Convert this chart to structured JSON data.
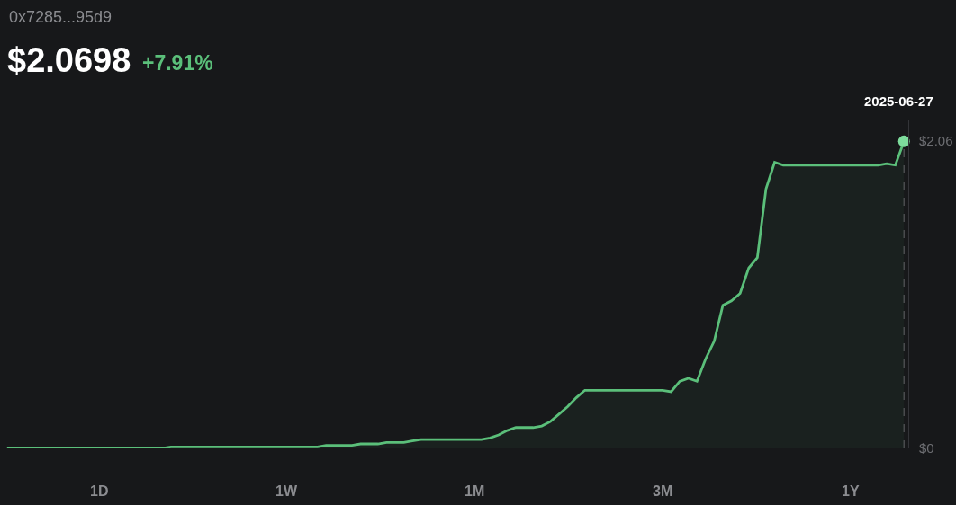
{
  "chart_data": {
    "type": "area",
    "title": "$2.0698",
    "subtitle": "+7.91%",
    "annotations": [
      "0x7285...95d9",
      "2025-06-27",
      "1D",
      "1W",
      "1M",
      "3M",
      "1Y"
    ],
    "categories": [
      null,
      null,
      null,
      null,
      null,
      null,
      null,
      null,
      null,
      null,
      null,
      null,
      null,
      null,
      null,
      null,
      null,
      null,
      null,
      null,
      null,
      null,
      null,
      null,
      null,
      null,
      null,
      null,
      null,
      null,
      null,
      null,
      null,
      null,
      null,
      null,
      null,
      null,
      null,
      null,
      null,
      null,
      null,
      null,
      null,
      null,
      null,
      null,
      null,
      null,
      null,
      null,
      null,
      null,
      null,
      null,
      null,
      null,
      null,
      null,
      null,
      null,
      null,
      null,
      null,
      null,
      null,
      null,
      null,
      null,
      null,
      null,
      null,
      null,
      null,
      null,
      null,
      null,
      null,
      null,
      null,
      null,
      null,
      null,
      null,
      null,
      null,
      null,
      null,
      null,
      null,
      null,
      null,
      null,
      null,
      null,
      null,
      null,
      null,
      null,
      null,
      null,
      null,
      null,
      null
    ],
    "series": [
      {
        "color": "#5bbf7a",
        "values": [
          0,
          0,
          0,
          0,
          0,
          0,
          0,
          0,
          0,
          0,
          0,
          0,
          0,
          0,
          0,
          0,
          0,
          0,
          0,
          0.01,
          0.01,
          0.01,
          0.01,
          0.01,
          0.01,
          0.01,
          0.01,
          0.01,
          0.01,
          0.01,
          0.01,
          0.01,
          0.01,
          0.01,
          0.01,
          0.01,
          0.01,
          0.02,
          0.02,
          0.02,
          0.02,
          0.03,
          0.03,
          0.03,
          0.04,
          0.04,
          0.04,
          0.05,
          0.06,
          0.06,
          0.06,
          0.06,
          0.06,
          0.06,
          0.06,
          0.06,
          0.07,
          0.09,
          0.12,
          0.14,
          0.14,
          0.14,
          0.15,
          0.18,
          0.23,
          0.28,
          0.34,
          0.39,
          0.39,
          0.39,
          0.39,
          0.39,
          0.39,
          0.39,
          0.39,
          0.39,
          0.39,
          0.38,
          0.45,
          0.47,
          0.45,
          0.6,
          0.72,
          0.96,
          0.99,
          1.04,
          1.21,
          1.28,
          1.74,
          1.92,
          1.9,
          1.9,
          1.9,
          1.9,
          1.9,
          1.9,
          1.9,
          1.9,
          1.9,
          1.9,
          1.9,
          1.9,
          1.91,
          1.9,
          2.06
        ]
      },
      {
        "type": "lollipop",
        "color": "#7ddc9c",
        "marker": "circle",
        "line_style": "dashed",
        "values": [
          null,
          null,
          null,
          null,
          null,
          null,
          null,
          null,
          null,
          null,
          null,
          null,
          null,
          null,
          null,
          null,
          null,
          null,
          null,
          null,
          null,
          null,
          null,
          null,
          null,
          null,
          null,
          null,
          null,
          null,
          null,
          null,
          null,
          null,
          null,
          null,
          null,
          null,
          null,
          null,
          null,
          null,
          null,
          null,
          null,
          null,
          null,
          null,
          null,
          null,
          null,
          null,
          null,
          null,
          null,
          null,
          null,
          null,
          null,
          null,
          null,
          null,
          null,
          null,
          null,
          null,
          null,
          null,
          null,
          null,
          null,
          null,
          null,
          null,
          null,
          null,
          null,
          null,
          null,
          null,
          null,
          null,
          null,
          null,
          null,
          null,
          null,
          null,
          null,
          null,
          null,
          null,
          null,
          null,
          null,
          null,
          null,
          null,
          null,
          null,
          null,
          null,
          null,
          null,
          2.06
        ]
      }
    ],
    "ylim": [
      0,
      2.2
    ],
    "yticks": [
      {
        "value": 0,
        "label": "$0"
      },
      {
        "value": 2.06,
        "label": "$2.06"
      }
    ],
    "tick_labels": "y"
  }
}
